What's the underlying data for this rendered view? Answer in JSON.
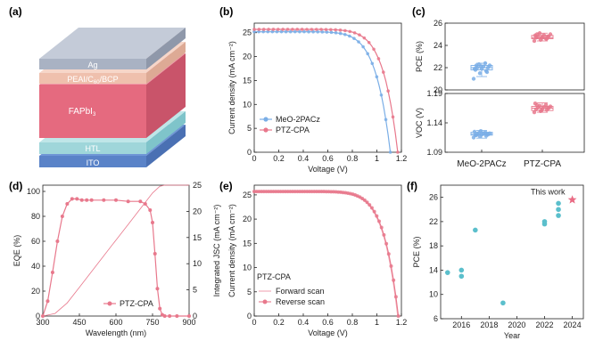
{
  "panel_labels": {
    "a": "(a)",
    "b": "(b)",
    "c": "(c)",
    "d": "(d)",
    "e": "(e)",
    "f": "(f)"
  },
  "device_stack": {
    "layers": [
      {
        "label": "Ag",
        "color": "#a9b2c3"
      },
      {
        "label": "PEAI/C60/BCP",
        "color": "#efc0ad"
      },
      {
        "label": "FAPbI3",
        "color": "#e56a7f"
      },
      {
        "label": "HTL",
        "color": "#9fd6da"
      },
      {
        "label": "ITO",
        "color": "#6f96d6"
      }
    ]
  },
  "colors": {
    "meo": "#7aaee6",
    "ptz": "#e8788c",
    "ptz_dark": "#e0607a",
    "teal": "#5bbfcc",
    "star": "#e96b84",
    "axis": "#222222"
  },
  "chart_data": [
    {
      "id": "b",
      "type": "line",
      "xlabel": "Voltage (V)",
      "ylabel": "Current density (mA cm⁻²)",
      "xlim": [
        0,
        1.2
      ],
      "ylim": [
        0,
        27
      ],
      "xticks": [
        0,
        0.2,
        0.4,
        0.6,
        0.8,
        1.0,
        1.2
      ],
      "yticks": [
        0,
        5,
        10,
        15,
        20,
        25
      ],
      "legend": "bottom-left",
      "series": [
        {
          "name": "MeO-2PACz",
          "color": "#7aaee6",
          "jsc": 25.2,
          "voc": 1.11,
          "n": 1.5,
          "x": [
            0,
            0.2,
            0.4,
            0.6,
            0.8,
            0.9,
            0.95,
            1.0,
            1.03,
            1.06,
            1.08,
            1.1,
            1.11
          ],
          "y": [
            25.2,
            25.1,
            25.0,
            24.8,
            24.2,
            23.3,
            22.3,
            20.1,
            17.6,
            13.2,
            9.3,
            3.7,
            0
          ]
        },
        {
          "name": "PTZ-CPA",
          "color": "#e8788c",
          "jsc": 25.7,
          "voc": 1.17,
          "n": 1.4,
          "x": [
            0,
            0.2,
            0.4,
            0.6,
            0.8,
            0.9,
            1.0,
            1.05,
            1.1,
            1.13,
            1.15,
            1.17
          ],
          "y": [
            25.7,
            25.6,
            25.5,
            25.3,
            24.9,
            24.5,
            23.4,
            22.0,
            17.6,
            12.6,
            7.5,
            0
          ]
        }
      ]
    },
    {
      "id": "c-top",
      "type": "scatter",
      "ylabel": "PCE (%)",
      "ylim": [
        20,
        26
      ],
      "yticks": [
        20,
        22,
        24,
        26
      ],
      "categories": [
        "MeO-2PACz",
        "PTZ-CPA"
      ],
      "series": [
        {
          "name": "MeO-2PACz",
          "color": "#7aaee6",
          "q1": 21.8,
          "q3": 22.2,
          "median": 22.0,
          "mean": 22.0,
          "wlo": 21.2,
          "whi": 22.4,
          "values": [
            21.0,
            21.5,
            21.7,
            21.8,
            21.9,
            22.0,
            22.0,
            22.1,
            22.2,
            22.3,
            22.4,
            21.9,
            22.1,
            21.6,
            22.2
          ]
        },
        {
          "name": "PTZ-CPA",
          "color": "#e8788c",
          "q1": 24.6,
          "q3": 24.9,
          "median": 24.7,
          "mean": 24.75,
          "wlo": 24.4,
          "whi": 25.1,
          "values": [
            24.4,
            24.5,
            24.6,
            24.7,
            24.7,
            24.8,
            24.8,
            24.9,
            25.0,
            25.1,
            24.6,
            24.9,
            24.7,
            24.8,
            25.0
          ]
        }
      ]
    },
    {
      "id": "c-bottom",
      "type": "scatter",
      "ylabel": "V_OC (V)",
      "ylim": [
        1.09,
        1.19
      ],
      "yticks": [
        1.09,
        1.14,
        1.19
      ],
      "categories": [
        "MeO-2PACz",
        "PTZ-CPA"
      ],
      "series": [
        {
          "name": "MeO-2PACz",
          "color": "#7aaee6",
          "q1": 1.119,
          "q3": 1.124,
          "median": 1.121,
          "mean": 1.121,
          "wlo": 1.114,
          "whi": 1.127,
          "values": [
            1.115,
            1.117,
            1.118,
            1.119,
            1.12,
            1.12,
            1.121,
            1.122,
            1.122,
            1.123,
            1.124,
            1.125,
            1.126,
            1.121,
            1.119
          ]
        },
        {
          "name": "PTZ-CPA",
          "color": "#e8788c",
          "q1": 1.161,
          "q3": 1.168,
          "median": 1.165,
          "mean": 1.165,
          "wlo": 1.158,
          "whi": 1.174,
          "values": [
            1.158,
            1.16,
            1.162,
            1.163,
            1.164,
            1.165,
            1.166,
            1.167,
            1.168,
            1.169,
            1.171,
            1.173,
            1.161,
            1.166,
            1.17
          ]
        }
      ]
    },
    {
      "id": "d",
      "type": "line",
      "xlabel": "Wavelength (nm)",
      "ylabel": "EQE (%)",
      "ylabel2": "Integrated J_SC (mA cm⁻²)",
      "xlim": [
        300,
        900
      ],
      "ylim": [
        0,
        105
      ],
      "ylim2": [
        0,
        25
      ],
      "xticks": [
        300,
        450,
        600,
        750,
        900
      ],
      "yticks": [
        0,
        20,
        40,
        60,
        80,
        100
      ],
      "yticks2": [
        0,
        5,
        10,
        15,
        20,
        25
      ],
      "legend": "bottom-center",
      "series": [
        {
          "name": "PTZ-CPA",
          "color": "#e8788c",
          "x": [
            300,
            320,
            340,
            360,
            380,
            400,
            420,
            440,
            460,
            480,
            500,
            550,
            600,
            650,
            700,
            720,
            740,
            750,
            760,
            770,
            780,
            790,
            800,
            820,
            850,
            900
          ],
          "y": [
            0,
            12,
            35,
            60,
            80,
            90,
            94,
            94,
            93,
            93,
            93,
            93,
            93,
            92,
            92,
            90,
            85,
            75,
            50,
            22,
            6,
            1,
            0,
            0,
            0,
            0
          ]
        },
        {
          "name": "Integrated JSC",
          "color": "#e8788c",
          "x": [
            300,
            350,
            400,
            450,
            500,
            550,
            600,
            650,
            700,
            750,
            780,
            800,
            900
          ],
          "y": [
            0,
            0.5,
            2.5,
            5.5,
            8.5,
            11.5,
            14.5,
            17.5,
            20.5,
            23.5,
            24.8,
            25.0,
            25.0
          ]
        }
      ]
    },
    {
      "id": "e",
      "type": "line",
      "xlabel": "Voltage (V)",
      "ylabel": "Current density (mA cm⁻²)",
      "xlim": [
        0,
        1.2
      ],
      "ylim": [
        0,
        27
      ],
      "xticks": [
        0,
        0.2,
        0.4,
        0.6,
        0.8,
        1.0,
        1.2
      ],
      "yticks": [
        0,
        5,
        10,
        15,
        20,
        25
      ],
      "legend_title": "PTZ-CPA",
      "legend": "bottom-left",
      "series": [
        {
          "name": "Forward scan",
          "color": "#f0a6b3",
          "style": "line",
          "jsc": 25.6,
          "voc": 1.17,
          "n": 1.4,
          "x": [
            0,
            0.4,
            0.8,
            1.0,
            1.1,
            1.17
          ],
          "y": [
            25.6,
            25.4,
            24.8,
            23.3,
            17.5,
            0
          ]
        },
        {
          "name": "Reverse scan",
          "color": "#e8788c",
          "style": "marker",
          "jsc": 25.7,
          "voc": 1.175,
          "n": 1.4,
          "x": [
            0,
            0.4,
            0.8,
            1.0,
            1.1,
            1.175
          ],
          "y": [
            25.7,
            25.5,
            24.9,
            23.4,
            17.7,
            0
          ]
        }
      ]
    },
    {
      "id": "f",
      "type": "scatter",
      "xlabel": "Year",
      "ylabel": "PCE (%)",
      "xlim": [
        2014.5,
        2024.8
      ],
      "ylim": [
        6,
        28
      ],
      "xticks": [
        2016,
        2018,
        2020,
        2022,
        2024
      ],
      "yticks": [
        6,
        10,
        14,
        18,
        22,
        26
      ],
      "annotation": "This work",
      "series": [
        {
          "name": "Reported",
          "color": "#5bbfcc",
          "x": [
            2015,
            2016,
            2016,
            2017,
            2019,
            2022,
            2022,
            2023,
            2023,
            2023
          ],
          "y": [
            13.6,
            14.0,
            13.0,
            20.6,
            8.6,
            21.6,
            22.0,
            23.0,
            24.0,
            25.0
          ]
        },
        {
          "name": "This work",
          "color": "#e96b84",
          "x": [
            2024
          ],
          "y": [
            25.6
          ]
        }
      ]
    }
  ]
}
